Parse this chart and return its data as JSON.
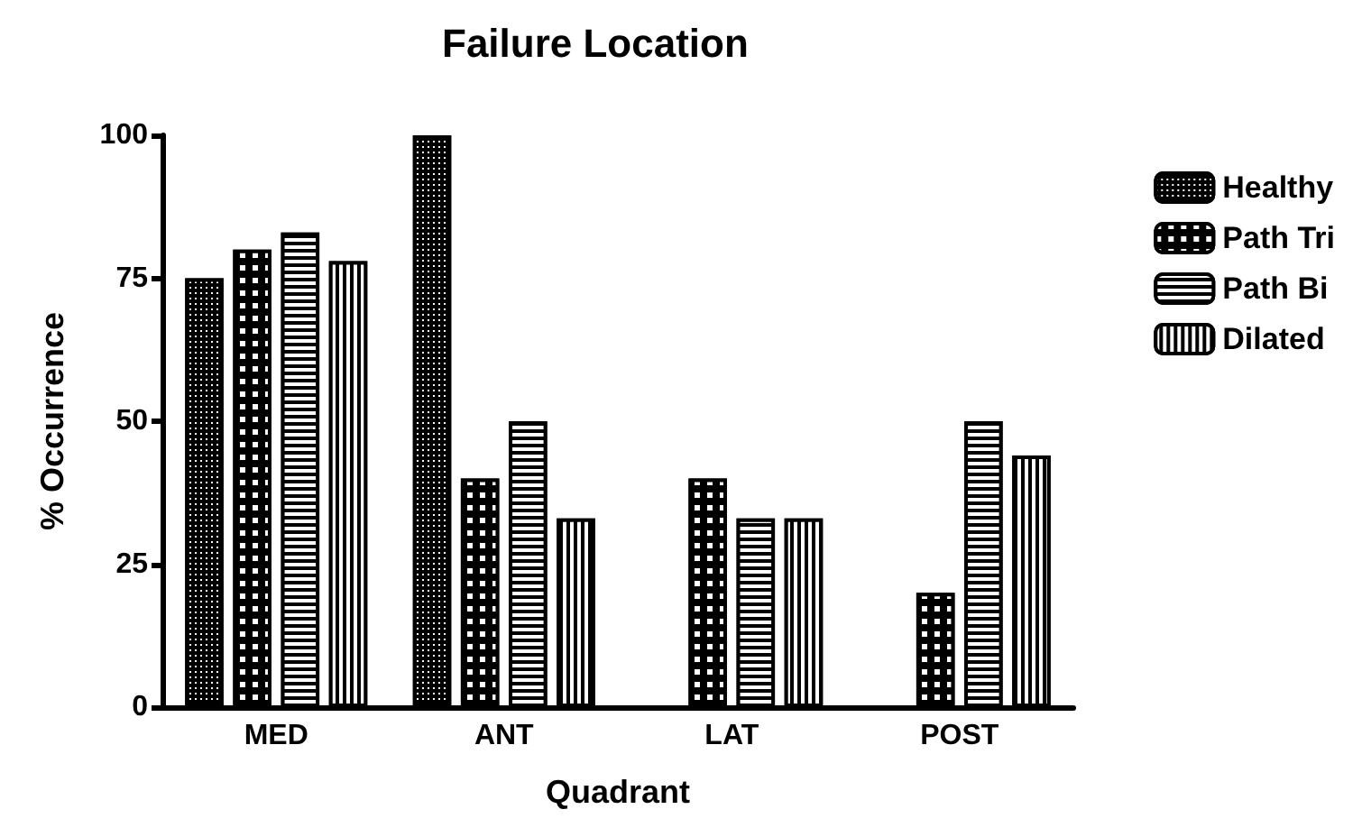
{
  "chart_data": {
    "type": "bar",
    "title": "Failure Location",
    "xlabel": "Quadrant",
    "ylabel": "% Occurrence",
    "categories": [
      "MED",
      "ANT",
      "LAT",
      "POST"
    ],
    "series": [
      {
        "name": "Healthy",
        "color": "#000000",
        "values": [
          75,
          100,
          0,
          0
        ]
      },
      {
        "name": "Path Tri",
        "color": "#000000",
        "values": [
          80,
          40,
          40,
          20
        ]
      },
      {
        "name": "Path Bi",
        "color": "#000000",
        "values": [
          83,
          50,
          33,
          50
        ]
      },
      {
        "name": "Dilated",
        "color": "#000000",
        "values": [
          78,
          33,
          33,
          44
        ]
      }
    ],
    "ylim": [
      0,
      100
    ],
    "yticks": [
      0,
      25,
      50,
      75,
      100
    ],
    "grid": false,
    "legend": "right"
  }
}
